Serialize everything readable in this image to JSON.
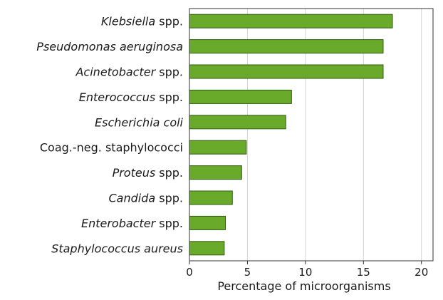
{
  "chart_data": {
    "type": "bar",
    "orientation": "horizontal",
    "categories": [
      {
        "parts": [
          {
            "text": "Klebsiella",
            "italic": true
          },
          {
            "text": " spp.",
            "italic": false
          }
        ]
      },
      {
        "parts": [
          {
            "text": "Pseudomonas aeruginosa",
            "italic": true
          }
        ]
      },
      {
        "parts": [
          {
            "text": "Acinetobacter",
            "italic": true
          },
          {
            "text": " spp.",
            "italic": false
          }
        ]
      },
      {
        "parts": [
          {
            "text": "Enterococcus",
            "italic": true
          },
          {
            "text": " spp.",
            "italic": false
          }
        ]
      },
      {
        "parts": [
          {
            "text": "Escherichia coli",
            "italic": true
          }
        ]
      },
      {
        "parts": [
          {
            "text": "Coag.-neg. staphylococci",
            "italic": false
          }
        ]
      },
      {
        "parts": [
          {
            "text": "Proteus",
            "italic": true
          },
          {
            "text": " spp.",
            "italic": false
          }
        ]
      },
      {
        "parts": [
          {
            "text": "Candida",
            "italic": true
          },
          {
            "text": " spp.",
            "italic": false
          }
        ]
      },
      {
        "parts": [
          {
            "text": "Enterobacter",
            "italic": true
          },
          {
            "text": " spp.",
            "italic": false
          }
        ]
      },
      {
        "parts": [
          {
            "text": "Staphylococcus aureus",
            "italic": true
          }
        ]
      }
    ],
    "values": [
      17.5,
      16.7,
      16.7,
      8.8,
      8.3,
      4.9,
      4.5,
      3.7,
      3.1,
      3.0
    ],
    "xlabel": "Percentage of microorganisms",
    "ylabel": "",
    "xlim": [
      0,
      21
    ],
    "xticks": [
      "0",
      "5",
      "10",
      "15",
      "20"
    ],
    "xtick_values": [
      0,
      5,
      10,
      15,
      20
    ],
    "grid": "vertical",
    "colors": {
      "bar_fill": "#6aaa2b",
      "bar_stroke": "#2f5a12",
      "grid": "#d3d3d3",
      "axis": "#333333"
    }
  }
}
